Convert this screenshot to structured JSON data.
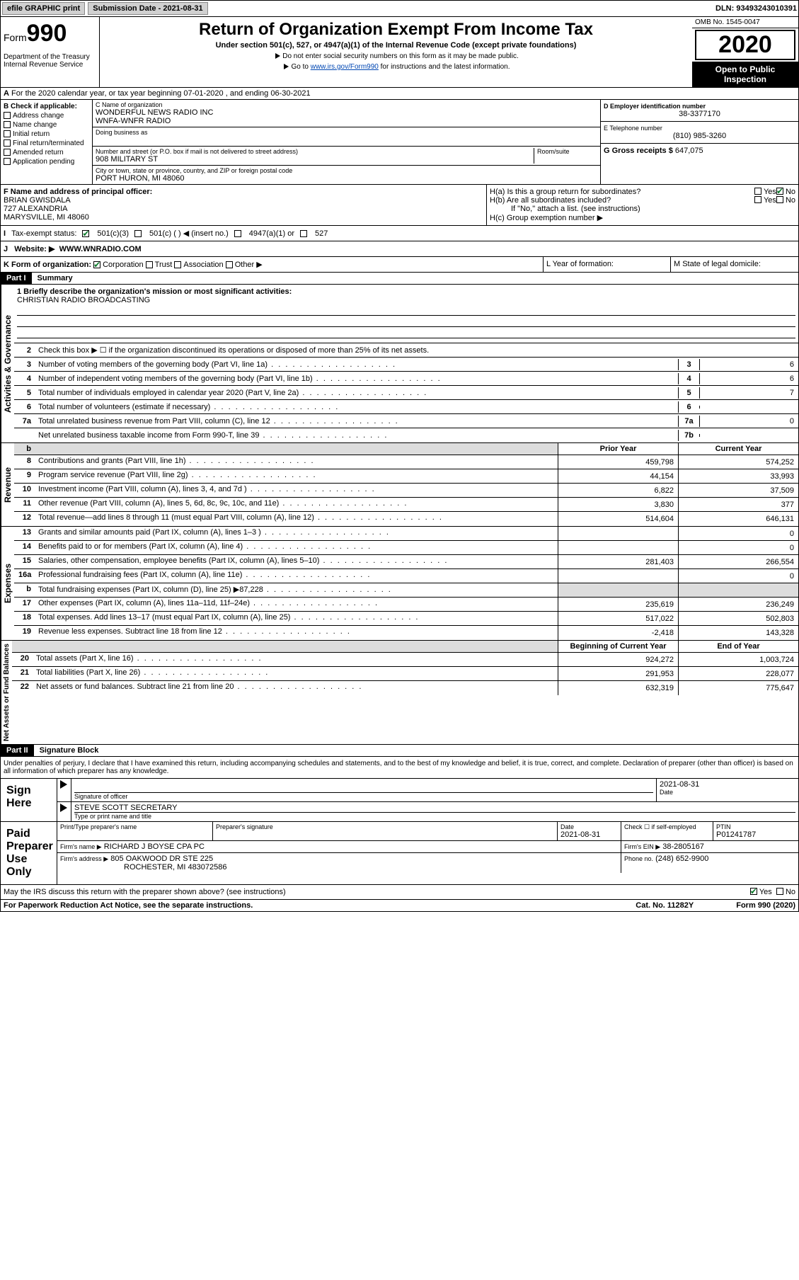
{
  "topbar": {
    "efile": "efile GRAPHIC print",
    "subdate_label": "Submission Date - ",
    "subdate": "2021-08-31",
    "dln_label": "DLN: ",
    "dln": "93493243010391"
  },
  "header": {
    "form_word": "Form",
    "form_num": "990",
    "dept": "Department of the Treasury\nInternal Revenue Service",
    "title": "Return of Organization Exempt From Income Tax",
    "subtitle": "Under section 501(c), 527, or 4947(a)(1) of the Internal Revenue Code (except private foundations)",
    "instr1": "Do not enter social security numbers on this form as it may be made public.",
    "instr2_pre": "Go to ",
    "instr2_link": "www.irs.gov/Form990",
    "instr2_post": " for instructions and the latest information.",
    "omb": "OMB No. 1545-0047",
    "year": "2020",
    "public": "Open to Public Inspection"
  },
  "sectionA": {
    "text": "For the 2020 calendar year, or tax year beginning 07-01-2020     , and ending 06-30-2021"
  },
  "B": {
    "label": "B Check if applicable:",
    "opts": [
      "Address change",
      "Name change",
      "Initial return",
      "Final return/terminated",
      "Amended return",
      "Application pending"
    ]
  },
  "C": {
    "name_label": "C Name of organization",
    "name1": "WONDERFUL NEWS RADIO INC",
    "name2": "WNFA-WNFR RADIO",
    "dba_label": "Doing business as",
    "addr_label": "Number and street (or P.O. box if mail is not delivered to street address)",
    "room_label": "Room/suite",
    "addr": "908 MILITARY ST",
    "city_label": "City or town, state or province, country, and ZIP or foreign postal code",
    "city": "PORT HURON, MI  48060"
  },
  "D": {
    "label": "D Employer identification number",
    "val": "38-3377170"
  },
  "E": {
    "label": "E Telephone number",
    "val": "(810) 985-3260"
  },
  "G": {
    "label": "G Gross receipts $ ",
    "val": "647,075"
  },
  "F": {
    "label": "F  Name and address of principal officer:",
    "name": "BRIAN GWISDALA",
    "addr1": "727 ALEXANDRIA",
    "addr2": "MARYSVILLE, MI  48060"
  },
  "H": {
    "a": "H(a)  Is this a group return for subordinates?",
    "b": "H(b)  Are all subordinates included?",
    "note": "If \"No,\" attach a list. (see instructions)",
    "c": "H(c)  Group exemption number ▶",
    "yes": "Yes",
    "no": "No"
  },
  "I": {
    "label": "Tax-exempt status:",
    "o1": "501(c)(3)",
    "o2": "501(c) (  ) ◀ (insert no.)",
    "o3": "4947(a)(1) or",
    "o4": "527"
  },
  "J": {
    "label": "Website: ▶",
    "val": "WWW.WNRADIO.COM"
  },
  "K": {
    "label": "K Form of organization:",
    "o1": "Corporation",
    "o2": "Trust",
    "o3": "Association",
    "o4": "Other ▶",
    "L": "L Year of formation:",
    "M": "M State of legal domicile:"
  },
  "part1": {
    "header": "Part I",
    "title": "Summary",
    "l1_label": "1  Briefly describe the organization's mission or most significant activities:",
    "l1_val": "CHRISTIAN RADIO BROADCASTING",
    "l2": "Check this box ▶ ☐  if the organization discontinued its operations or disposed of more than 25% of its net assets.",
    "lines": [
      {
        "n": "3",
        "t": "Number of voting members of the governing body (Part VI, line 1a)",
        "box": "3",
        "v": "6"
      },
      {
        "n": "4",
        "t": "Number of independent voting members of the governing body (Part VI, line 1b)",
        "box": "4",
        "v": "6"
      },
      {
        "n": "5",
        "t": "Total number of individuals employed in calendar year 2020 (Part V, line 2a)",
        "box": "5",
        "v": "7"
      },
      {
        "n": "6",
        "t": "Total number of volunteers (estimate if necessary)",
        "box": "6",
        "v": ""
      },
      {
        "n": "7a",
        "t": "Total unrelated business revenue from Part VIII, column (C), line 12",
        "box": "7a",
        "v": "0"
      },
      {
        "n": "",
        "t": "Net unrelated business taxable income from Form 990-T, line 39",
        "box": "7b",
        "v": ""
      }
    ],
    "prior": "Prior Year",
    "current": "Current Year",
    "rev": [
      {
        "n": "8",
        "t": "Contributions and grants (Part VIII, line 1h)",
        "p": "459,798",
        "c": "574,252"
      },
      {
        "n": "9",
        "t": "Program service revenue (Part VIII, line 2g)",
        "p": "44,154",
        "c": "33,993"
      },
      {
        "n": "10",
        "t": "Investment income (Part VIII, column (A), lines 3, 4, and 7d )",
        "p": "6,822",
        "c": "37,509"
      },
      {
        "n": "11",
        "t": "Other revenue (Part VIII, column (A), lines 5, 6d, 8c, 9c, 10c, and 11e)",
        "p": "3,830",
        "c": "377"
      },
      {
        "n": "12",
        "t": "Total revenue—add lines 8 through 11 (must equal Part VIII, column (A), line 12)",
        "p": "514,604",
        "c": "646,131"
      }
    ],
    "exp": [
      {
        "n": "13",
        "t": "Grants and similar amounts paid (Part IX, column (A), lines 1–3 )",
        "p": "",
        "c": "0"
      },
      {
        "n": "14",
        "t": "Benefits paid to or for members (Part IX, column (A), line 4)",
        "p": "",
        "c": "0"
      },
      {
        "n": "15",
        "t": "Salaries, other compensation, employee benefits (Part IX, column (A), lines 5–10)",
        "p": "281,403",
        "c": "266,554"
      },
      {
        "n": "16a",
        "t": "Professional fundraising fees (Part IX, column (A), line 11e)",
        "p": "",
        "c": "0"
      },
      {
        "n": "b",
        "t": "Total fundraising expenses (Part IX, column (D), line 25) ▶87,228",
        "p": "shaded",
        "c": "shaded"
      },
      {
        "n": "17",
        "t": "Other expenses (Part IX, column (A), lines 11a–11d, 11f–24e)",
        "p": "235,619",
        "c": "236,249"
      },
      {
        "n": "18",
        "t": "Total expenses. Add lines 13–17 (must equal Part IX, column (A), line 25)",
        "p": "517,022",
        "c": "502,803"
      },
      {
        "n": "19",
        "t": "Revenue less expenses. Subtract line 18 from line 12",
        "p": "-2,418",
        "c": "143,328"
      }
    ],
    "boy": "Beginning of Current Year",
    "eoy": "End of Year",
    "net": [
      {
        "n": "20",
        "t": "Total assets (Part X, line 16)",
        "p": "924,272",
        "c": "1,003,724"
      },
      {
        "n": "21",
        "t": "Total liabilities (Part X, line 26)",
        "p": "291,953",
        "c": "228,077"
      },
      {
        "n": "22",
        "t": "Net assets or fund balances. Subtract line 21 from line 20",
        "p": "632,319",
        "c": "775,647"
      }
    ],
    "side_ag": "Activities & Governance",
    "side_rev": "Revenue",
    "side_exp": "Expenses",
    "side_net": "Net Assets or Fund Balances"
  },
  "part2": {
    "header": "Part II",
    "title": "Signature Block",
    "decl": "Under penalties of perjury, I declare that I have examined this return, including accompanying schedules and statements, and to the best of my knowledge and belief, it is true, correct, and complete. Declaration of preparer (other than officer) is based on all information of which preparer has any knowledge.",
    "sign_here": "Sign Here",
    "sig_officer": "Signature of officer",
    "sig_date": "Date",
    "sig_date_val": "2021-08-31",
    "officer_name": "STEVE SCOTT  SECRETARY",
    "officer_sub": "Type or print name and title",
    "paid": "Paid Preparer Use Only",
    "prep_name_label": "Print/Type preparer's name",
    "prep_sig_label": "Preparer's signature",
    "prep_date_label": "Date",
    "prep_date": "2021-08-31",
    "check_label": "Check ☐ if self-employed",
    "ptin_label": "PTIN",
    "ptin": "P01241787",
    "firm_name_label": "Firm's name    ▶",
    "firm_name": "RICHARD J BOYSE CPA PC",
    "firm_ein_label": "Firm's EIN ▶",
    "firm_ein": "38-2805167",
    "firm_addr_label": "Firm's address ▶",
    "firm_addr1": "805 OAKWOOD DR STE 225",
    "firm_addr2": "ROCHESTER, MI  483072586",
    "phone_label": "Phone no.",
    "phone": "(248) 652-9900",
    "discuss": "May the IRS discuss this return with the preparer shown above? (see instructions)",
    "yes": "Yes",
    "no": "No"
  },
  "footer": {
    "paperwork": "For Paperwork Reduction Act Notice, see the separate instructions.",
    "cat": "Cat. No. 11282Y",
    "form": "Form 990 (2020)"
  }
}
